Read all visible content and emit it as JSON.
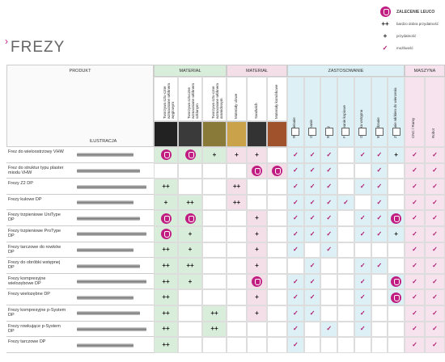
{
  "header": {
    "arrow": "›",
    "title": "FREZY"
  },
  "legend": [
    {
      "icon": "leuco",
      "text": "ZALECENIE LEUCO"
    },
    {
      "symbol": "++",
      "text": "bardzo dobra przydatność"
    },
    {
      "symbol": "+",
      "text": "przydatność"
    },
    {
      "symbol": "✓",
      "text": "możliwość"
    }
  ],
  "table": {
    "product_label": "PRODUKT",
    "illustration_label": "ILUSTRACJA",
    "groups": [
      {
        "label": "MATERIAŁ",
        "color": "#d9eddb",
        "columns": [
          "Tworzywa sztu-czne wzmacniane włóknem węglowym",
          "Tworzywa sztuczne wzmacniane włóknem szklanym",
          "Tworzywa sztu-czne wzmacniane włóknem aramidowym"
        ]
      },
      {
        "label": "MATERIAŁ",
        "color": "#f4dfe8",
        "columns": [
          "Materiały ulowe",
          "Sandwich",
          "Materiały komórkowe"
        ]
      },
      {
        "label": "ZASTOSOWANIE",
        "color": "#dcf0f5",
        "columns": [
          "Rozdzielanie",
          "Obrzynanie",
          "Wpusty",
          "Frezowanie kopiowe",
          "Obróbka wstępna",
          "Wygładzanie",
          "Zrzucanie włókien do wiercenia"
        ]
      },
      {
        "label": "MASZYNA",
        "color": "#f6e3ee",
        "columns": [
          "CNC / Ramy",
          "Robot"
        ]
      }
    ],
    "rows": [
      {
        "name": "Frez do wieloostrzowy VHW",
        "cells": [
          "leuco",
          "leuco",
          "+",
          "+",
          "+",
          null,
          "✓",
          "✓",
          "✓",
          null,
          "✓",
          "✓",
          "+",
          "✓",
          "✓"
        ]
      },
      {
        "name": "Frez do struktur typu plaster miodu VHW",
        "cells": [
          null,
          null,
          null,
          null,
          "leuco",
          "leuco",
          "✓",
          "✓",
          "✓",
          null,
          null,
          "✓",
          null,
          "✓",
          "✓"
        ]
      },
      {
        "name": "Frezy Z2 DP",
        "cells": [
          "++",
          null,
          null,
          "++",
          null,
          null,
          "✓",
          "✓",
          "✓",
          null,
          "✓",
          "✓",
          null,
          "✓",
          "✓"
        ]
      },
      {
        "name": "Frezy kulowe DP",
        "cells": [
          "+",
          "++",
          null,
          "++",
          null,
          null,
          "✓",
          "✓",
          "✓",
          "✓",
          null,
          "✓",
          null,
          "✓",
          "✓"
        ]
      },
      {
        "name": "Frezy trzpieniowe UniType DP",
        "cells": [
          "leuco",
          "leuco",
          null,
          null,
          "+",
          null,
          "✓",
          "✓",
          "✓",
          null,
          "✓",
          "✓",
          "leuco",
          "✓",
          "✓"
        ]
      },
      {
        "name": "Frezy trzpieniowe ProType DP",
        "cells": [
          "leuco",
          "+",
          null,
          null,
          "+",
          null,
          "✓",
          "✓",
          "✓",
          null,
          "✓",
          "✓",
          "+",
          "✓",
          "✓"
        ]
      },
      {
        "name": "Frezy tarczowe do rowków DP",
        "cells": [
          "++",
          "+",
          null,
          null,
          "+",
          null,
          "✓",
          null,
          "✓",
          null,
          null,
          null,
          null,
          "✓",
          "✓"
        ]
      },
      {
        "name": "Frezy do obróbki wstępnej DP",
        "cells": [
          "++",
          "++",
          null,
          null,
          "+",
          null,
          null,
          "✓",
          null,
          null,
          "✓",
          "✓",
          null,
          "✓",
          "✓"
        ]
      },
      {
        "name": "Frezy kompresyjne wielozębowe DP",
        "cells": [
          "++",
          "+",
          null,
          null,
          "leuco",
          null,
          "✓",
          "✓",
          null,
          null,
          "✓",
          null,
          "leuco",
          "✓",
          "✓"
        ]
      },
      {
        "name": "Frezy wielozębne DP",
        "cells": [
          "++",
          null,
          null,
          null,
          "+",
          null,
          "✓",
          "✓",
          null,
          null,
          "✓",
          null,
          "leuco",
          "✓",
          "✓"
        ]
      },
      {
        "name": "Frezy kompresyjne p-System DP",
        "cells": [
          "++",
          null,
          "++",
          null,
          "+",
          null,
          "✓",
          "✓",
          null,
          null,
          "✓",
          null,
          null,
          "✓",
          "✓"
        ]
      },
      {
        "name": "Frezy rowkujące p-System DP",
        "cells": [
          "++",
          null,
          "++",
          null,
          null,
          null,
          "✓",
          null,
          "✓",
          null,
          "✓",
          null,
          null,
          "✓",
          "✓"
        ]
      },
      {
        "name": "Frezy tarczowe DP",
        "cells": [
          "++",
          null,
          null,
          null,
          null,
          null,
          "✓",
          null,
          null,
          null,
          null,
          null,
          null,
          "✓",
          "✓"
        ]
      }
    ]
  }
}
